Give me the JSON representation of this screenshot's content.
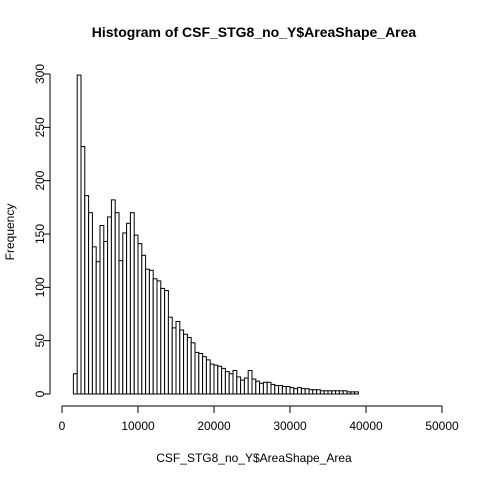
{
  "chart_data": {
    "type": "bar",
    "title": "Histogram of CSF_STG8_no_Y$AreaShape_Area",
    "xlabel": "CSF_STG8_no_Y$AreaShape_Area",
    "ylabel": "Frequency",
    "xlim": [
      0,
      50000
    ],
    "ylim": [
      0,
      300
    ],
    "x_ticks": [
      0,
      10000,
      20000,
      30000,
      40000,
      50000
    ],
    "y_ticks": [
      0,
      50,
      100,
      150,
      200,
      250,
      300
    ],
    "bin_start": 1500,
    "bin_width": 500,
    "values": [
      19,
      299,
      232,
      186,
      170,
      138,
      124,
      158,
      143,
      166,
      182,
      170,
      125,
      151,
      160,
      170,
      149,
      141,
      130,
      117,
      116,
      108,
      106,
      99,
      97,
      72,
      62,
      68,
      60,
      56,
      53,
      48,
      39,
      38,
      35,
      32,
      28,
      27,
      26,
      24,
      21,
      19,
      22,
      16,
      13,
      15,
      22,
      14,
      12,
      10,
      11,
      11,
      9,
      8,
      8,
      7,
      7,
      6,
      5,
      6,
      5,
      5,
      4,
      4,
      4,
      3,
      3,
      3,
      3,
      3,
      3,
      3,
      2,
      2,
      2
    ]
  }
}
